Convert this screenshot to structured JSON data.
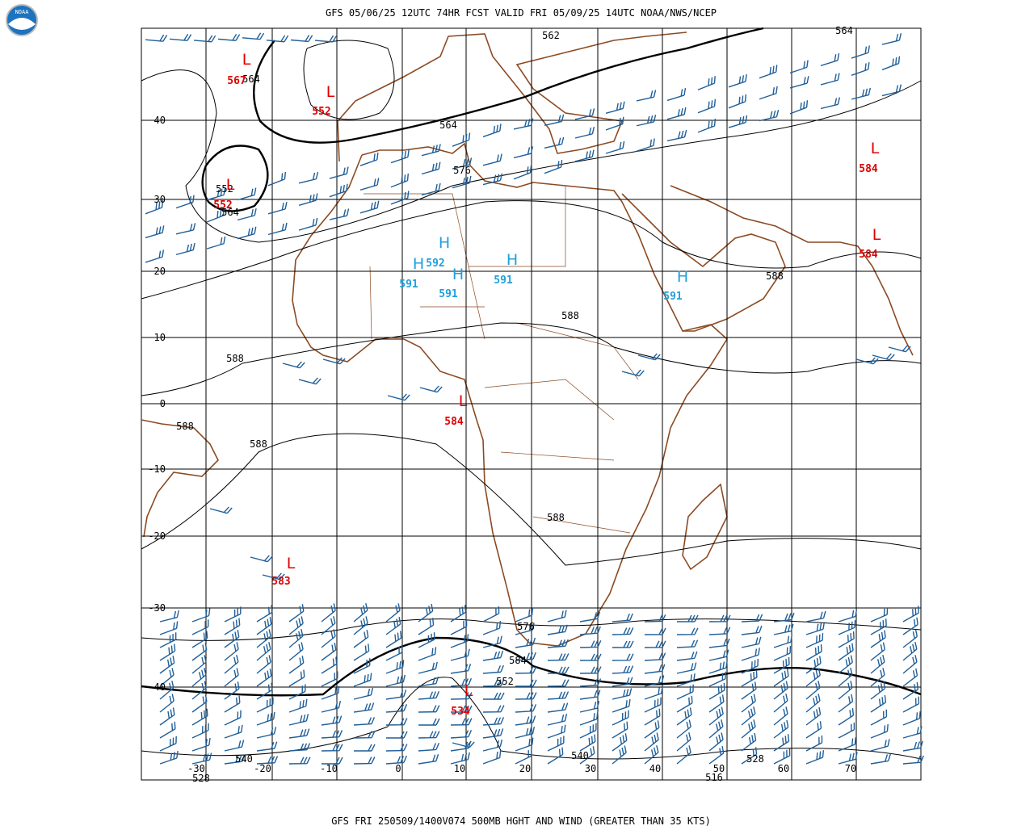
{
  "header": {
    "title": "GFS 05/06/25 12UTC 74HR FCST VALID FRI 05/09/25 14UTC NOAA/NWS/NCEP"
  },
  "logo": {
    "label": "NOAA"
  },
  "footer": {
    "title": "GFS FRI 250509/1400V074 500MB HGHT AND WIND (GREATER THAN 35 KTS)"
  },
  "latitude_labels": [
    40,
    30,
    20,
    10,
    0,
    -10,
    -20,
    -30,
    -40
  ],
  "longitude_labels": [
    -30,
    -20,
    -10,
    0,
    10,
    20,
    30,
    40,
    50,
    60,
    70
  ],
  "centers": [
    {
      "symbol": "L",
      "value": 567
    },
    {
      "symbol": "L",
      "value": 552
    },
    {
      "symbol": "L",
      "value": 552
    },
    {
      "symbol": "L",
      "value": 584
    },
    {
      "symbol": "L",
      "value": 584
    },
    {
      "symbol": "L",
      "value": 584
    },
    {
      "symbol": "L",
      "value": 583
    },
    {
      "symbol": "L",
      "value": 534
    },
    {
      "symbol": "H",
      "value": 592
    },
    {
      "symbol": "H",
      "value": 591
    },
    {
      "symbol": "H",
      "value": 591
    },
    {
      "symbol": "H",
      "value": 591
    },
    {
      "symbol": "H",
      "value": 591
    }
  ],
  "contour_labels": [
    562,
    564,
    564,
    564,
    576,
    552,
    564,
    588,
    588,
    588,
    588,
    588,
    588,
    576,
    584,
    552,
    540,
    528,
    540,
    528,
    516
  ]
}
